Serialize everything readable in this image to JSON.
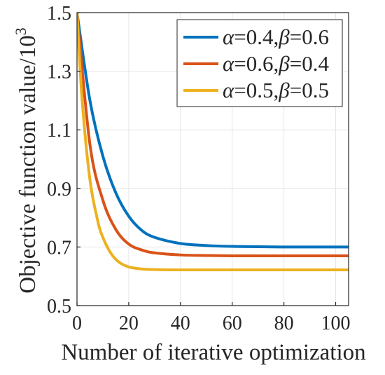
{
  "chart_data": {
    "type": "line",
    "xlabel": "Number of iterative optimization",
    "ylabel_main": "Objective function value/10",
    "ylabel_sup": "3",
    "xlim": [
      0,
      105
    ],
    "ylim": [
      0.5,
      1.5
    ],
    "xticks": [
      0,
      20,
      40,
      60,
      80,
      100
    ],
    "xtick_labels": [
      "0",
      "20",
      "40",
      "60",
      "80",
      "100"
    ],
    "yticks": [
      0.5,
      0.7,
      0.9,
      1.1,
      1.3,
      1.5
    ],
    "ytick_labels": [
      "0.5",
      "0.7",
      "0.9",
      "1.1",
      "1.3",
      "1.5"
    ],
    "grid": true,
    "legend_position": "top-right",
    "series": [
      {
        "alpha": "0.4",
        "beta": "0.6",
        "color": "#0072BD",
        "x": [
          0,
          5,
          10,
          15,
          20,
          25,
          30,
          40,
          50,
          60,
          70,
          80,
          90,
          100,
          105
        ],
        "y": [
          1.5,
          1.2,
          1.01,
          0.885,
          0.805,
          0.757,
          0.733,
          0.712,
          0.705,
          0.702,
          0.701,
          0.7,
          0.7,
          0.7,
          0.7
        ]
      },
      {
        "alpha": "0.6",
        "beta": "0.4",
        "color": "#D95319",
        "x": [
          0,
          5,
          10,
          15,
          20,
          25,
          30,
          40,
          50,
          60,
          70,
          80,
          90,
          100,
          105
        ],
        "y": [
          1.5,
          1.05,
          0.86,
          0.76,
          0.71,
          0.69,
          0.68,
          0.673,
          0.671,
          0.67,
          0.67,
          0.67,
          0.67,
          0.67,
          0.67
        ]
      },
      {
        "alpha": "0.5",
        "beta": "0.5",
        "color": "#EDB120",
        "x": [
          0,
          2,
          5,
          8,
          10,
          13,
          16,
          20,
          25,
          30,
          40,
          60,
          80,
          100,
          105
        ],
        "y": [
          1.5,
          1.2,
          0.93,
          0.79,
          0.733,
          0.68,
          0.65,
          0.632,
          0.625,
          0.623,
          0.622,
          0.622,
          0.622,
          0.622,
          0.622
        ]
      }
    ],
    "legend": [
      {
        "alpha_sym": "α",
        "alpha_val": "=0.4,",
        "beta_sym": "β",
        "beta_val": "=0.6"
      },
      {
        "alpha_sym": "α",
        "alpha_val": "=0.6,",
        "beta_sym": "β",
        "beta_val": "=0.4"
      },
      {
        "alpha_sym": "α",
        "alpha_val": "=0.5,",
        "beta_sym": "β",
        "beta_val": "=0.5"
      }
    ]
  },
  "colors": {
    "axis": "#262626",
    "grid": "#e6e6e6"
  }
}
